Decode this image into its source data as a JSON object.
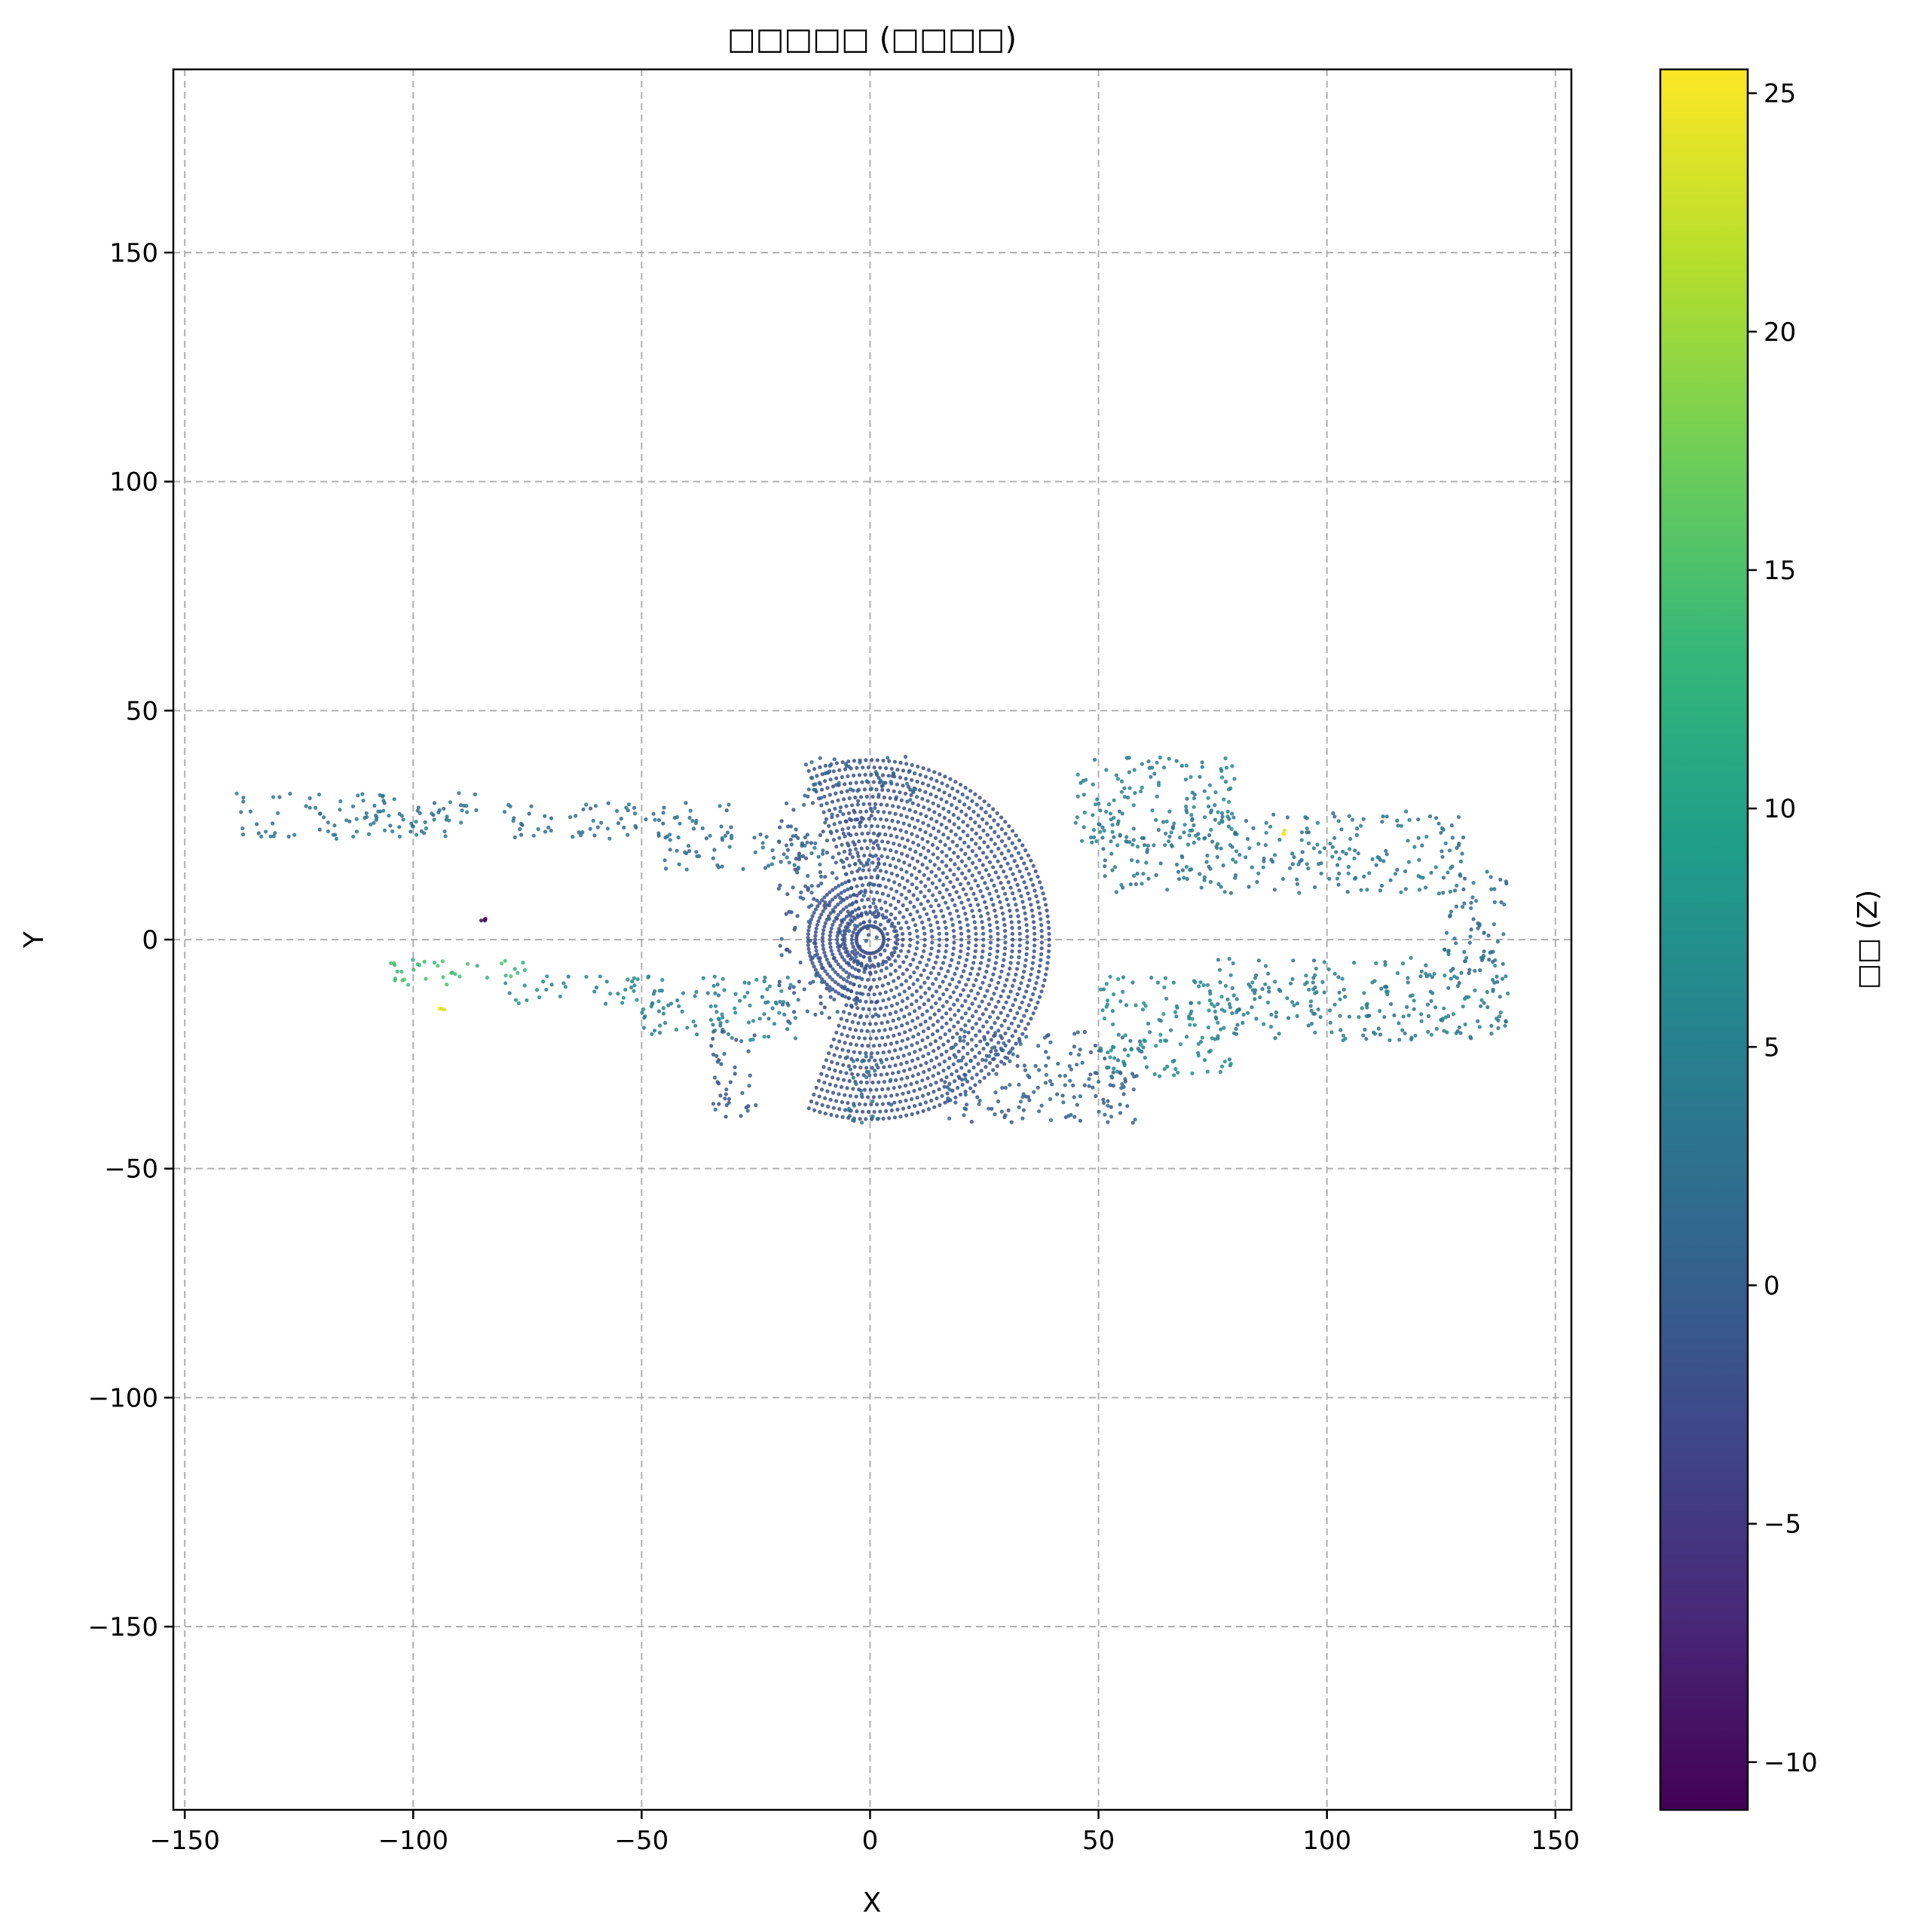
{
  "chart_data": {
    "type": "scatter",
    "title": "□□□□□ (□□□□)",
    "xlabel": "X",
    "ylabel": "Y",
    "colorbar_label": "□□ (Z)",
    "xlim": [
      -152.5,
      153.5
    ],
    "ylim": [
      -190,
      190
    ],
    "xticks": [
      -150,
      -100,
      -50,
      0,
      50,
      100,
      150
    ],
    "xtick_labels": [
      "−150",
      "−100",
      "−50",
      "0",
      "50",
      "100",
      "150"
    ],
    "yticks": [
      -150,
      -100,
      -50,
      0,
      50,
      100,
      150
    ],
    "ytick_labels": [
      "−150",
      "−100",
      "−50",
      "0",
      "50",
      "100",
      "150"
    ],
    "grid": true,
    "colorbar": {
      "min": -11,
      "max": 25.5,
      "ticks": [
        -10,
        -5,
        0,
        5,
        10,
        15,
        20,
        25
      ],
      "tick_labels": [
        "−10",
        "−5",
        "0",
        "5",
        "10",
        "15",
        "20",
        "25"
      ],
      "colormap": "viridis",
      "colors": [
        "#440154",
        "#482878",
        "#3e4989",
        "#31688e",
        "#26828e",
        "#1f9e89",
        "#35b779",
        "#6ece58",
        "#b5de2b",
        "#fde725"
      ]
    },
    "point_groups": [
      {
        "name": "",
        "shape": "rings",
        "cx": 0,
        "cy": 0,
        "r_min": 4,
        "r_max": 40,
        "ring_step": 1.6,
        "theta_deg": [
          -110,
          110
        ],
        "z": -2
      },
      {
        "name": "",
        "shape": "rings",
        "cx": 0,
        "cy": 0,
        "r_min": 4,
        "r_max": 14,
        "ring_step": 1.6,
        "theta_deg": [
          110,
          250
        ],
        "z": -2
      },
      {
        "name": "",
        "shape": "ring",
        "cx": 0,
        "cy": 0,
        "r": 3,
        "z": -2
      },
      {
        "name": "",
        "shape": "ring",
        "cx": 0,
        "cy": 0,
        "r": 6,
        "z": -2
      },
      {
        "name": "",
        "shape": "band",
        "x": [
          -20,
          2
        ],
        "y": [
          -18,
          30
        ],
        "z": -1
      },
      {
        "name": "",
        "shape": "band",
        "x": [
          -45,
          -10
        ],
        "y": [
          15,
          23
        ],
        "z": 2
      },
      {
        "name": "",
        "shape": "band",
        "x": [
          -80,
          -30
        ],
        "y": [
          22,
          30
        ],
        "z": 2
      },
      {
        "name": "",
        "shape": "band",
        "x": [
          -15,
          10
        ],
        "y": [
          30,
          40
        ],
        "z": 1
      },
      {
        "name": "",
        "shape": "band",
        "x": [
          45,
          80
        ],
        "y": [
          20,
          40
        ],
        "z": 5
      },
      {
        "name": "",
        "shape": "band",
        "x": [
          50,
          130
        ],
        "y": [
          10,
          28
        ],
        "z": 3
      },
      {
        "name": "",
        "shape": "band",
        "x": [
          -140,
          -85
        ],
        "y": [
          22,
          32
        ],
        "z": 3
      },
      {
        "name": "",
        "shape": "band",
        "x": [
          -80,
          -45
        ],
        "y": [
          -14,
          -8
        ],
        "z": 6
      },
      {
        "name": "",
        "shape": "band",
        "x": [
          -50,
          -15
        ],
        "y": [
          -22,
          -8
        ],
        "z": 5
      },
      {
        "name": "",
        "shape": "band",
        "x": [
          15,
          60
        ],
        "y": [
          -40,
          -20
        ],
        "z": 0
      },
      {
        "name": "",
        "shape": "band",
        "x": [
          50,
          80
        ],
        "y": [
          -30,
          -8
        ],
        "z": 6
      },
      {
        "name": "",
        "shape": "band",
        "x": [
          75,
          140
        ],
        "y": [
          -22,
          -4
        ],
        "z": 4
      },
      {
        "name": "",
        "shape": "band",
        "x": [
          125,
          140
        ],
        "y": [
          -10,
          15
        ],
        "z": 2
      },
      {
        "name": "",
        "shape": "band",
        "x": [
          -35,
          -25
        ],
        "y": [
          -40,
          -20
        ],
        "z": -1
      },
      {
        "name": "",
        "shape": "band",
        "x": [
          -5,
          5
        ],
        "y": [
          -40,
          -25
        ],
        "z": 2
      },
      {
        "name": "",
        "shape": "band",
        "x": [
          -105,
          -75
        ],
        "y": [
          -10,
          -4
        ],
        "z": 14
      },
      {
        "name": "",
        "shape": "band",
        "x": [
          -95,
          -93
        ],
        "y": [
          -15.5,
          -15
        ],
        "z": 25
      },
      {
        "name": "",
        "shape": "band",
        "x": [
          -86,
          -84
        ],
        "y": [
          4,
          5
        ],
        "z": -10
      },
      {
        "name": "",
        "shape": "band",
        "x": [
          90,
          91
        ],
        "y": [
          23,
          24
        ],
        "z": 25
      }
    ]
  }
}
